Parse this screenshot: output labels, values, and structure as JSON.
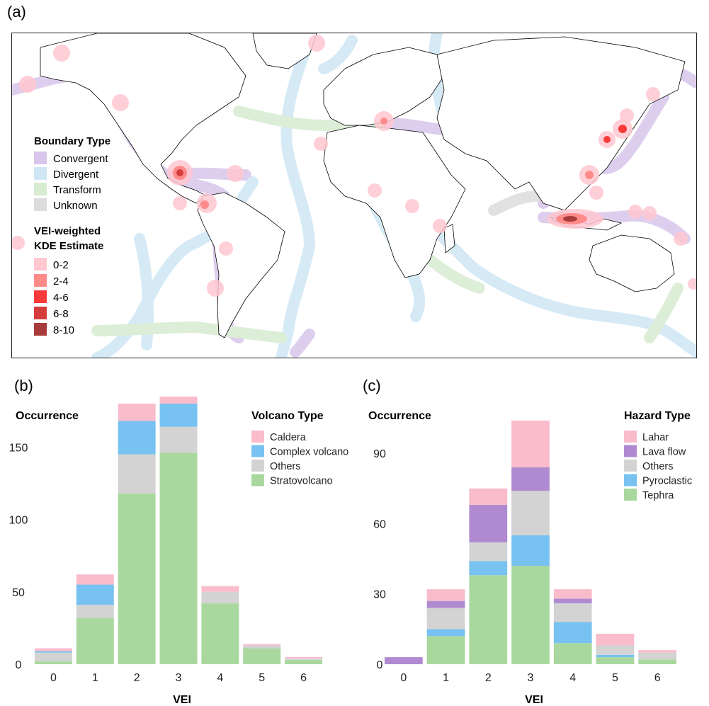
{
  "panel_labels": {
    "a": "(a)",
    "b": "(b)",
    "c": "(c)"
  },
  "map": {
    "boundary_legend": {
      "title": "Boundary Type",
      "items": [
        {
          "label": "Convergent",
          "color": "#d9c6ec"
        },
        {
          "label": "Divergent",
          "color": "#cfe7f5"
        },
        {
          "label": "Transform",
          "color": "#d8ecd2"
        },
        {
          "label": "Unknown",
          "color": "#dcdcdc"
        }
      ]
    },
    "kde_legend": {
      "title_line1": "VEI-weighted",
      "title_line2": "KDE Estimate",
      "items": [
        {
          "label": "0-2",
          "color": "#ffc7d0"
        },
        {
          "label": "2-4",
          "color": "#ff8a8a"
        },
        {
          "label": "4-6",
          "color": "#f93a3a"
        },
        {
          "label": "6-8",
          "color": "#d53c3c"
        },
        {
          "label": "8-10",
          "color": "#a83c3c"
        }
      ]
    }
  },
  "chart_data": [
    {
      "type": "bar",
      "stacked": true,
      "ylabel": "Occurrence",
      "xlabel": "VEI",
      "categories": [
        "0",
        "1",
        "2",
        "3",
        "4",
        "5",
        "6"
      ],
      "legend_title": "Volcano Type",
      "yticks": [
        0,
        50,
        100,
        150
      ],
      "ylim": [
        0,
        180
      ],
      "series": [
        {
          "name": "Stratovolcano",
          "color": "#a9d89f",
          "values": [
            2,
            32,
            118,
            146,
            42,
            11,
            3
          ]
        },
        {
          "name": "Others",
          "color": "#d3d3d3",
          "values": [
            6,
            9,
            27,
            18,
            8,
            2,
            1
          ]
        },
        {
          "name": "Complex volcano",
          "color": "#77c2f0",
          "values": [
            1,
            14,
            23,
            16,
            0,
            0,
            0
          ]
        },
        {
          "name": "Caldera",
          "color": "#f9bccb",
          "values": [
            2,
            7,
            12,
            6,
            4,
            1,
            1
          ]
        }
      ]
    },
    {
      "type": "bar",
      "stacked": true,
      "ylabel": "Occurrence",
      "xlabel": "VEI",
      "categories": [
        "0",
        "1",
        "2",
        "3",
        "4",
        "5",
        "6"
      ],
      "legend_title": "Hazard Type",
      "yticks": [
        0,
        30,
        60,
        90
      ],
      "ylim": [
        0,
        110
      ],
      "series": [
        {
          "name": "Tephra",
          "color": "#a9d89f",
          "values": [
            0,
            12,
            38,
            42,
            9,
            3,
            2
          ]
        },
        {
          "name": "Pyroclastic",
          "color": "#77c2f0",
          "values": [
            0,
            3,
            6,
            13,
            9,
            1,
            0
          ]
        },
        {
          "name": "Others",
          "color": "#d3d3d3",
          "values": [
            0,
            9,
            8,
            19,
            8,
            4,
            3
          ]
        },
        {
          "name": "Lava flow",
          "color": "#b08ad1",
          "values": [
            3,
            3,
            16,
            10,
            2,
            0,
            0
          ]
        },
        {
          "name": "Lahar",
          "color": "#f9bccb",
          "values": [
            0,
            5,
            7,
            20,
            4,
            5,
            1
          ]
        }
      ]
    }
  ]
}
